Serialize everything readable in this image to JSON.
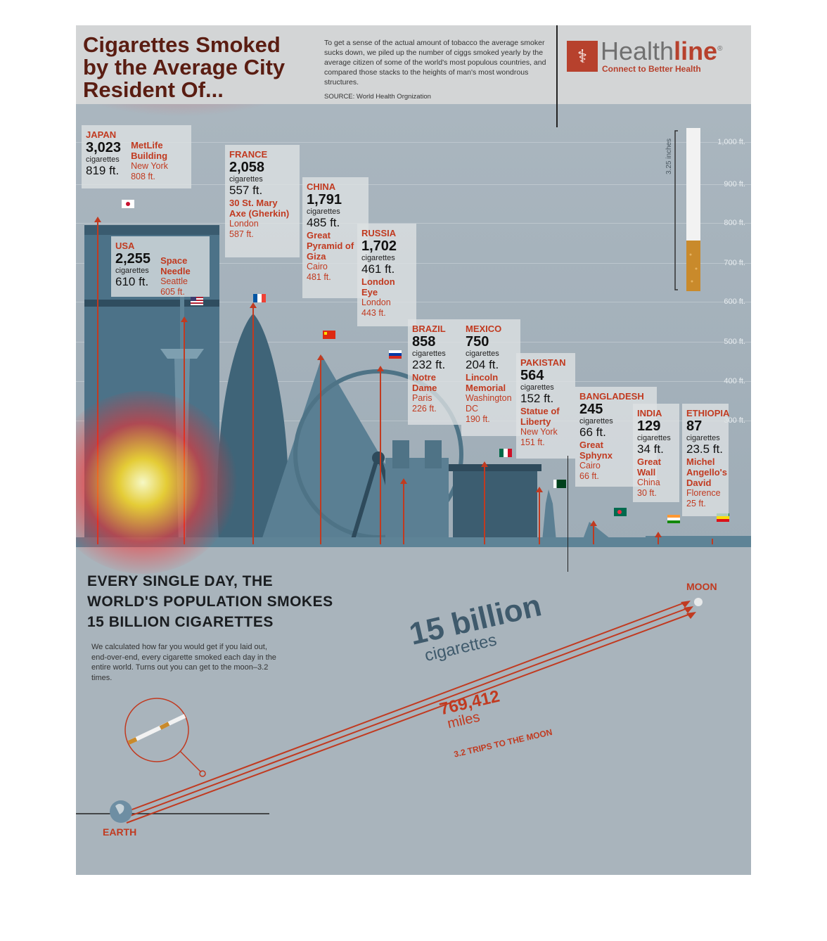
{
  "header": {
    "title_lines": [
      "Cigarettes Smoked",
      "by the Average City",
      "Resident Of..."
    ],
    "intro": "To get a sense of the actual amount of tobacco the average smoker sucks down, we piled up the number of ciggs smoked yearly by the average citizen of some of the world's most populous countries, and compared those stacks to the heights of man's most wondrous structures.",
    "source": "SOURCE: World Health Orgnization",
    "logo": {
      "name_a": "Health",
      "name_b": "line",
      "registered": "®",
      "tagline": "Connect to Better Health",
      "icon": "caduceus-icon",
      "brand_color": "#b7412d"
    }
  },
  "ruler": {
    "labels": [
      "1,000 ft.",
      "900 ft.",
      "800 ft.",
      "700 ft.",
      "600 ft.",
      "500 ft.",
      "400 ft.",
      "300 ft."
    ],
    "cigarette_label": "3.25 inches"
  },
  "countries": [
    {
      "id": "japan",
      "country": "JAPAN",
      "count": "3,023",
      "unit": "cigarettes",
      "height": "819 ft.",
      "landmark": "MetLife Building",
      "city": "New York",
      "landmark_height": "808 ft.",
      "flag_colors": [
        "#ffffff",
        "#c8102e"
      ]
    },
    {
      "id": "usa",
      "country": "USA",
      "count": "2,255",
      "unit": "cigarettes",
      "height": "610 ft.",
      "landmark": "Space Needle",
      "city": "Seattle",
      "landmark_height": "605 ft.",
      "flag_colors": [
        "#b22234",
        "#3c3b6e"
      ]
    },
    {
      "id": "france",
      "country": "FRANCE",
      "count": "2,058",
      "unit": "cigarettes",
      "height": "557 ft.",
      "landmark": "30 St. Mary Axe (Gherkin)",
      "city": "London",
      "landmark_height": "587 ft.",
      "flag_colors": [
        "#0055a4",
        "#ffffff",
        "#ef4135"
      ]
    },
    {
      "id": "china",
      "country": "CHINA",
      "count": "1,791",
      "unit": "cigarettes",
      "height": "485 ft.",
      "landmark": "Great Pyramid of Giza",
      "city": "Cairo",
      "landmark_height": "481 ft.",
      "flag_colors": [
        "#de2910",
        "#ffde00"
      ]
    },
    {
      "id": "russia",
      "country": "RUSSIA",
      "count": "1,702",
      "unit": "cigarettes",
      "height": "461 ft.",
      "landmark": "London Eye",
      "city": "London",
      "landmark_height": "443 ft.",
      "flag_colors": [
        "#ffffff",
        "#0039a6",
        "#d52b1e"
      ]
    },
    {
      "id": "brazil",
      "country": "BRAZIL",
      "count": "858",
      "unit": "cigarettes",
      "height": "232 ft.",
      "landmark": "Notre Dame",
      "city": "Paris",
      "landmark_height": "226 ft.",
      "flag_colors": [
        "#009c3b",
        "#ffdf00"
      ]
    },
    {
      "id": "mexico",
      "country": "MEXICO",
      "count": "750",
      "unit": "cigarettes",
      "height": "204 ft.",
      "landmark": "Lincoln Memorial",
      "city": "Washington DC",
      "landmark_height": "190 ft.",
      "flag_colors": [
        "#006847",
        "#ffffff",
        "#ce1126"
      ]
    },
    {
      "id": "pakistan",
      "country": "PAKISTAN",
      "count": "564",
      "unit": "cigarettes",
      "height": "152 ft.",
      "landmark": "Statue of Liberty",
      "city": "New York",
      "landmark_height": "151 ft.",
      "flag_colors": [
        "#ffffff",
        "#01411c"
      ]
    },
    {
      "id": "bangladesh",
      "country": "BANGLADESH",
      "count": "245",
      "unit": "cigarettes",
      "height": "66 ft.",
      "landmark": "Great Sphynx",
      "city": "Cairo",
      "landmark_height": "66 ft.",
      "flag_colors": [
        "#006a4e",
        "#f42a41"
      ]
    },
    {
      "id": "india",
      "country": "INDIA",
      "count": "129",
      "unit": "cigarettes",
      "height": "34 ft.",
      "landmark": "Great Wall",
      "city": "China",
      "landmark_height": "30 ft.",
      "flag_colors": [
        "#ff9933",
        "#ffffff",
        "#138808"
      ]
    },
    {
      "id": "ethiopia",
      "country": "ETHIOPIA",
      "count": "87",
      "unit": "cigarettes",
      "height": "23.5 ft.",
      "landmark": "Michel Angello's David",
      "city": "Florence",
      "landmark_height": "25 ft.",
      "flag_colors": [
        "#078930",
        "#fcdd09",
        "#da121a"
      ]
    }
  ],
  "daily": {
    "headline_lines": [
      "EVERY SINGLE DAY, THE",
      "WORLD'S  POPULATION SMOKES",
      "15 BILLION CIGARETTES"
    ],
    "text": "We calculated how far you would get if you laid out, end-over-end, every cigarette smoked each day in the entire world. Turns out you can get to the moon–3.2 times.",
    "big_number": "15 billion",
    "big_unit": "cigarettes",
    "miles_number": "769,412",
    "miles_unit": "miles",
    "trips": "3.2 TRIPS TO THE MOON",
    "moon_label": "MOON",
    "earth_label": "EARTH"
  },
  "colors": {
    "accent": "#c13a20",
    "dark_title": "#5a1d12",
    "background": "#a9b4bc",
    "buildings": "#5e8396"
  }
}
